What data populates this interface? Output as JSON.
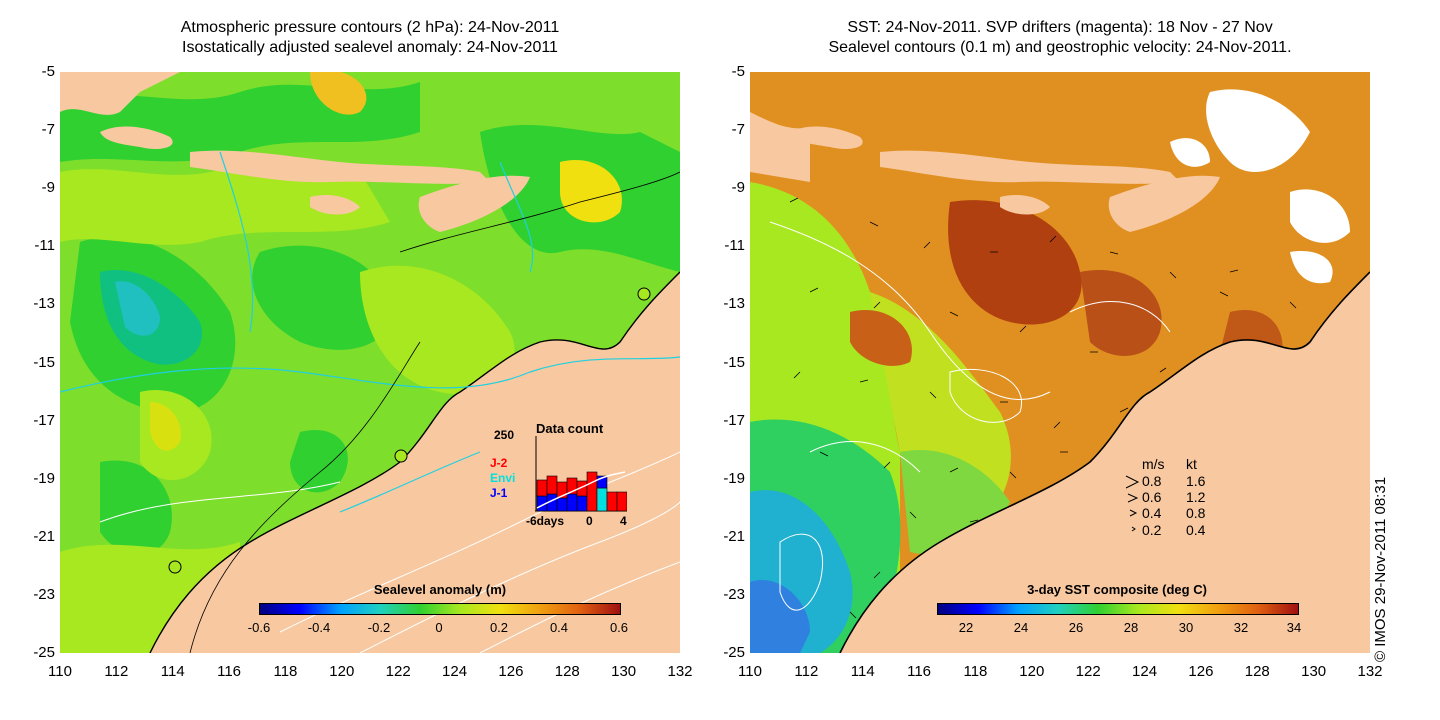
{
  "left_panel": {
    "title_line1": "Atmospheric pressure contours (2 hPa): 24-Nov-2011",
    "title_line2": "Isostatically adjusted sealevel anomaly: 24-Nov-2011",
    "colorbar_title": "Sealevel anomaly (m)",
    "colorbar_ticks": [
      "-0.6",
      "-0.4",
      "-0.2",
      "0",
      "0.2",
      "0.4",
      "0.6"
    ],
    "data_count": {
      "title": "Data count",
      "max_label": "250",
      "series_labels": [
        {
          "label": "J-2",
          "color": "#ff0000"
        },
        {
          "label": "Envi",
          "color": "#00e0e0"
        },
        {
          "label": "J-1",
          "color": "#0000ff"
        }
      ],
      "x_labels": [
        "-6days",
        "0",
        "4"
      ]
    }
  },
  "right_panel": {
    "title_line1": "SST: 24-Nov-2011. SVP drifters (magenta): 18 Nov - 27 Nov",
    "title_line2": "Sealevel contours (0.1 m) and geostrophic velocity: 24-Nov-2011.",
    "colorbar_title": "3-day SST composite (deg C)",
    "colorbar_ticks": [
      "22",
      "24",
      "26",
      "28",
      "30",
      "32",
      "34"
    ],
    "velocity_legend": {
      "header_ms": "m/s",
      "header_kt": "kt",
      "rows": [
        {
          "ms": "0.8",
          "kt": "1.6"
        },
        {
          "ms": "0.6",
          "kt": "1.2"
        },
        {
          "ms": "0.4",
          "kt": "0.8"
        },
        {
          "ms": "0.2",
          "kt": "0.4"
        }
      ]
    }
  },
  "axes": {
    "y_ticks": [
      "-5",
      "-7",
      "-9",
      "-11",
      "-13",
      "-15",
      "-17",
      "-19",
      "-21",
      "-23",
      "-25"
    ],
    "x_ticks": [
      "110",
      "112",
      "114",
      "116",
      "118",
      "120",
      "122",
      "124",
      "126",
      "128",
      "130",
      "132"
    ]
  },
  "copyright": "© IMOS 29-Nov-2011 08:31",
  "colors": {
    "land": "#f8c8a0",
    "sea_green": "#30d030",
    "sea_yellowgreen": "#a8e820",
    "sst_orange": "#d88020",
    "sst_darkred": "#b04010",
    "sst_blue": "#30a0e0"
  }
}
